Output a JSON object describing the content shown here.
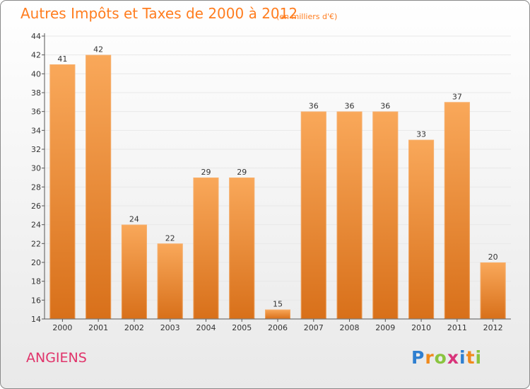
{
  "title": "Autres Impôts et Taxes de 2000 à 2012",
  "subtitle": "(en milliers d'€)",
  "commune": "ANGIENS",
  "logo": {
    "text": "Proxiti",
    "letters": [
      {
        "ch": "P",
        "color": "#2f7fd0"
      },
      {
        "ch": "r",
        "color": "#f08a1c"
      },
      {
        "ch": "o",
        "color": "#8ac43f"
      },
      {
        "ch": "x",
        "color": "#d8347a"
      },
      {
        "ch": "i",
        "color": "#2f7fd0"
      },
      {
        "ch": "t",
        "color": "#f08a1c"
      },
      {
        "ch": "i",
        "color": "#8ac43f"
      }
    ]
  },
  "colors": {
    "bar_light": "#f9a85a",
    "bar_dark": "#d8701a",
    "title": "#ff7d1f",
    "commune": "#e0336a",
    "grid": "#e8e8e8",
    "axis": "#555555"
  },
  "chart_data": {
    "type": "bar",
    "title": "Autres Impôts et Taxes de 2000 à 2012",
    "subtitle": "(en milliers d'€)",
    "categories": [
      "2000",
      "2001",
      "2002",
      "2003",
      "2004",
      "2005",
      "2006",
      "2007",
      "2008",
      "2009",
      "2010",
      "2011",
      "2012"
    ],
    "values": [
      41,
      42,
      24,
      22,
      29,
      29,
      15,
      36,
      36,
      36,
      33,
      37,
      20
    ],
    "ylim": [
      14,
      44
    ],
    "yticks": [
      14,
      16,
      18,
      20,
      22,
      24,
      26,
      28,
      30,
      32,
      34,
      36,
      38,
      40,
      42,
      44
    ],
    "grid": "horizontal"
  }
}
